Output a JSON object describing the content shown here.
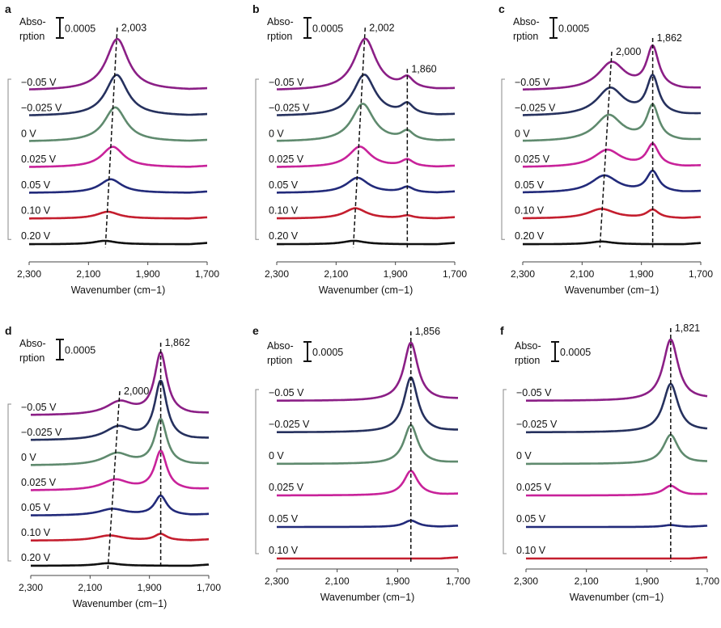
{
  "figure": {
    "y_axis_label": "Abso-rption",
    "scale_label": "0.0005",
    "x_axis_label": "Wavenumber (cm−1)"
  },
  "colors": {
    "-0.05 V": "#8b1f86",
    "-0.025 V": "#26315e",
    "0 V": "#5f8a6e",
    "0.025 V": "#c8229a",
    "0.05 V": "#222a7a",
    "0.10 V": "#c41e2e",
    "0.20 V": "#111111"
  },
  "chart_data": [
    {
      "panel": "a",
      "type": "line",
      "xlabel": "Wavenumber (cm−1)",
      "ylabel": "Absorption",
      "xlim": [
        2300,
        1700
      ],
      "x_ticks": [
        "2,300",
        "2,100",
        "1,900",
        "1,700"
      ],
      "scale_bar": "0.0005",
      "peak_positions": [
        2003
      ],
      "peak_labels": [
        "2,003"
      ],
      "series": [
        {
          "name": "−0.05 V",
          "voltage": "-0.05 V",
          "peaks": [
            {
              "center": 2003,
              "height": 0.00075,
              "width": 45
            }
          ]
        },
        {
          "name": "−0.025 V",
          "voltage": "-0.025 V",
          "peaks": [
            {
              "center": 2005,
              "height": 0.0006,
              "width": 45
            }
          ]
        },
        {
          "name": "0 V",
          "voltage": "0 V",
          "peaks": [
            {
              "center": 2010,
              "height": 0.0005,
              "width": 45
            }
          ]
        },
        {
          "name": "0.025 V",
          "voltage": "0.025 V",
          "peaks": [
            {
              "center": 2018,
              "height": 0.0003,
              "width": 45
            }
          ]
        },
        {
          "name": "0.05 V",
          "voltage": "0.05 V",
          "peaks": [
            {
              "center": 2025,
              "height": 0.0002,
              "width": 45
            }
          ]
        },
        {
          "name": "0.10 V",
          "voltage": "0.10 V",
          "peaks": [
            {
              "center": 2035,
              "height": 0.0001,
              "width": 45
            }
          ]
        },
        {
          "name": "0.20 V",
          "voltage": "0.20 V",
          "peaks": [
            {
              "center": 2045,
              "height": 5e-05,
              "width": 45
            }
          ]
        }
      ]
    },
    {
      "panel": "b",
      "type": "line",
      "xlabel": "Wavenumber (cm−1)",
      "ylabel": "Absorption",
      "xlim": [
        2300,
        1700
      ],
      "x_ticks": [
        "2,300",
        "2,100",
        "1,900",
        "1,700"
      ],
      "scale_bar": "0.0005",
      "peak_positions": [
        2002,
        1860
      ],
      "peak_labels": [
        "2,002",
        "1,860"
      ],
      "series": [
        {
          "name": "−0.05 V",
          "voltage": "-0.05 V",
          "peaks": [
            {
              "center": 2002,
              "height": 0.00075,
              "width": 45
            },
            {
              "center": 1860,
              "height": 0.00015,
              "width": 25
            }
          ]
        },
        {
          "name": "−0.025 V",
          "voltage": "-0.025 V",
          "peaks": [
            {
              "center": 2005,
              "height": 0.0006,
              "width": 45
            },
            {
              "center": 1860,
              "height": 0.00015,
              "width": 25
            }
          ]
        },
        {
          "name": "0 V",
          "voltage": "0 V",
          "peaks": [
            {
              "center": 2010,
              "height": 0.00055,
              "width": 45
            },
            {
              "center": 1860,
              "height": 0.00013,
              "width": 25
            }
          ]
        },
        {
          "name": "0.025 V",
          "voltage": "0.025 V",
          "peaks": [
            {
              "center": 2020,
              "height": 0.0003,
              "width": 45
            },
            {
              "center": 1860,
              "height": 0.0001,
              "width": 25
            }
          ]
        },
        {
          "name": "0.05 V",
          "voltage": "0.05 V",
          "peaks": [
            {
              "center": 2028,
              "height": 0.00022,
              "width": 45
            },
            {
              "center": 1860,
              "height": 8e-05,
              "width": 25
            }
          ]
        },
        {
          "name": "0.10 V",
          "voltage": "0.10 V",
          "peaks": [
            {
              "center": 2035,
              "height": 0.00015,
              "width": 45
            },
            {
              "center": 1860,
              "height": 4e-05,
              "width": 25
            }
          ]
        },
        {
          "name": "0.20 V",
          "voltage": "0.20 V",
          "peaks": [
            {
              "center": 2040,
              "height": 5e-05,
              "width": 45
            }
          ]
        }
      ]
    },
    {
      "panel": "c",
      "type": "line",
      "xlabel": "Wavenumber (cm−1)",
      "ylabel": "Absorption",
      "xlim": [
        2300,
        1700
      ],
      "x_ticks": [
        "2,300",
        "2,100",
        "1,900",
        "1,700"
      ],
      "scale_bar": "0.0005",
      "peak_positions": [
        2000,
        1862
      ],
      "peak_labels": [
        "2,000",
        "1,862"
      ],
      "series": [
        {
          "name": "−0.05 V",
          "voltage": "-0.05 V",
          "peaks": [
            {
              "center": 2000,
              "height": 0.0004,
              "width": 55
            },
            {
              "center": 1862,
              "height": 0.0006,
              "width": 25
            }
          ]
        },
        {
          "name": "−0.025 V",
          "voltage": "-0.025 V",
          "peaks": [
            {
              "center": 2005,
              "height": 0.0004,
              "width": 55
            },
            {
              "center": 1862,
              "height": 0.00055,
              "width": 25
            }
          ]
        },
        {
          "name": "0 V",
          "voltage": "0 V",
          "peaks": [
            {
              "center": 2010,
              "height": 0.00038,
              "width": 55
            },
            {
              "center": 1862,
              "height": 0.0005,
              "width": 25
            }
          ]
        },
        {
          "name": "0.025 V",
          "voltage": "0.025 V",
          "peaks": [
            {
              "center": 2015,
              "height": 0.00025,
              "width": 55
            },
            {
              "center": 1862,
              "height": 0.00032,
              "width": 25
            }
          ]
        },
        {
          "name": "0.05 V",
          "voltage": "0.05 V",
          "peaks": [
            {
              "center": 2025,
              "height": 0.00025,
              "width": 55
            },
            {
              "center": 1862,
              "height": 0.0003,
              "width": 25
            }
          ]
        },
        {
          "name": "0.10 V",
          "voltage": "0.10 V",
          "peaks": [
            {
              "center": 2035,
              "height": 0.00014,
              "width": 55
            },
            {
              "center": 1862,
              "height": 0.00012,
              "width": 25
            }
          ]
        },
        {
          "name": "0.20 V",
          "voltage": "0.20 V",
          "peaks": [
            {
              "center": 2035,
              "height": 4e-05,
              "width": 45
            }
          ]
        }
      ]
    },
    {
      "panel": "d",
      "type": "line",
      "xlabel": "Wavenumber (cm−1)",
      "ylabel": "Absorption",
      "xlim": [
        2300,
        1700
      ],
      "x_ticks": [
        "2,300",
        "2,100",
        "1,900",
        "1,700"
      ],
      "scale_bar": "0.0005",
      "peak_positions": [
        2000,
        1862
      ],
      "peak_labels": [
        "2,000",
        "1,862"
      ],
      "series": [
        {
          "name": "−0.05 V",
          "voltage": "-0.05 V",
          "peaks": [
            {
              "center": 2000,
              "height": 0.0002,
              "width": 55
            },
            {
              "center": 1862,
              "height": 0.00095,
              "width": 25
            }
          ]
        },
        {
          "name": "−0.025 V",
          "voltage": "-0.025 V",
          "peaks": [
            {
              "center": 2005,
              "height": 0.0002,
              "width": 55
            },
            {
              "center": 1862,
              "height": 0.0009,
              "width": 25
            }
          ]
        },
        {
          "name": "0 V",
          "voltage": "0 V",
          "peaks": [
            {
              "center": 2010,
              "height": 0.00018,
              "width": 55
            },
            {
              "center": 1862,
              "height": 0.0007,
              "width": 25
            }
          ]
        },
        {
          "name": "0.025 V",
          "voltage": "0.025 V",
          "peaks": [
            {
              "center": 2015,
              "height": 0.00016,
              "width": 55
            },
            {
              "center": 1862,
              "height": 0.0006,
              "width": 25
            }
          ]
        },
        {
          "name": "0.05 V",
          "voltage": "0.05 V",
          "peaks": [
            {
              "center": 2025,
              "height": 0.0001,
              "width": 55
            },
            {
              "center": 1862,
              "height": 0.0003,
              "width": 25
            }
          ]
        },
        {
          "name": "0.10 V",
          "voltage": "0.10 V",
          "peaks": [
            {
              "center": 2035,
              "height": 8e-05,
              "width": 55
            },
            {
              "center": 1862,
              "height": 0.0001,
              "width": 25
            }
          ]
        },
        {
          "name": "0.20 V",
          "voltage": "0.20 V",
          "peaks": [
            {
              "center": 2040,
              "height": 4e-05,
              "width": 45
            }
          ]
        }
      ]
    },
    {
      "panel": "e",
      "type": "line",
      "xlabel": "Wavenumber (cm−1)",
      "ylabel": "Absorption",
      "xlim": [
        2300,
        1700
      ],
      "x_ticks": [
        "2,300",
        "2,100",
        "1,900",
        "1,700"
      ],
      "scale_bar": "0.0005",
      "peak_positions": [
        1856
      ],
      "peak_labels": [
        "1,856"
      ],
      "series": [
        {
          "name": "−0.05 V",
          "voltage": "-0.05 V",
          "peaks": [
            {
              "center": 1856,
              "height": 0.0009,
              "width": 28
            }
          ]
        },
        {
          "name": "−0.025 V",
          "voltage": "-0.025 V",
          "peaks": [
            {
              "center": 1856,
              "height": 0.00085,
              "width": 28
            }
          ]
        },
        {
          "name": "0 V",
          "voltage": "0 V",
          "peaks": [
            {
              "center": 1856,
              "height": 0.0006,
              "width": 28
            }
          ]
        },
        {
          "name": "0.025 V",
          "voltage": "0.025 V",
          "peaks": [
            {
              "center": 1856,
              "height": 0.00038,
              "width": 28
            }
          ]
        },
        {
          "name": "0.05 V",
          "voltage": "0.05 V",
          "peaks": [
            {
              "center": 1856,
              "height": 0.0001,
              "width": 28
            }
          ]
        },
        {
          "name": "0.10 V",
          "voltage": "0.10 V",
          "peaks": []
        }
      ]
    },
    {
      "panel": "f",
      "type": "line",
      "xlabel": "Wavenumber (cm−1)",
      "ylabel": "Absorption",
      "xlim": [
        2300,
        1700
      ],
      "x_ticks": [
        "2,300",
        "2,100",
        "1,900",
        "1,700"
      ],
      "scale_bar": "0.0005",
      "peak_positions": [
        1821
      ],
      "peak_labels": [
        "1,821"
      ],
      "series": [
        {
          "name": "−0.05 V",
          "voltage": "-0.05 V",
          "peaks": [
            {
              "center": 1821,
              "height": 0.00095,
              "width": 30
            }
          ]
        },
        {
          "name": "−0.025 V",
          "voltage": "-0.025 V",
          "peaks": [
            {
              "center": 1821,
              "height": 0.00075,
              "width": 30
            }
          ]
        },
        {
          "name": "0 V",
          "voltage": "0 V",
          "peaks": [
            {
              "center": 1821,
              "height": 0.00045,
              "width": 30
            }
          ]
        },
        {
          "name": "0.025 V",
          "voltage": "0.025 V",
          "peaks": [
            {
              "center": 1821,
              "height": 0.00015,
              "width": 30
            }
          ]
        },
        {
          "name": "0.05 V",
          "voltage": "0.05 V",
          "peaks": [
            {
              "center": 1821,
              "height": 3e-05,
              "width": 30
            }
          ]
        },
        {
          "name": "0.10 V",
          "voltage": "0.10 V",
          "peaks": []
        }
      ]
    }
  ]
}
